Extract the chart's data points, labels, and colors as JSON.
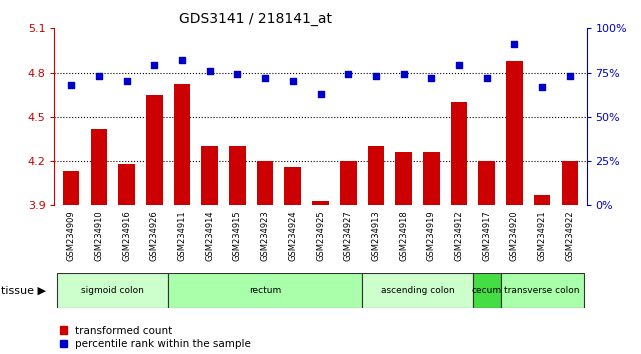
{
  "title": "GDS3141 / 218141_at",
  "samples": [
    "GSM234909",
    "GSM234910",
    "GSM234916",
    "GSM234926",
    "GSM234911",
    "GSM234914",
    "GSM234915",
    "GSM234923",
    "GSM234924",
    "GSM234925",
    "GSM234927",
    "GSM234913",
    "GSM234918",
    "GSM234919",
    "GSM234912",
    "GSM234917",
    "GSM234920",
    "GSM234921",
    "GSM234922"
  ],
  "bar_values": [
    4.13,
    4.42,
    4.18,
    4.65,
    4.72,
    4.3,
    4.3,
    4.2,
    4.16,
    3.93,
    4.2,
    4.3,
    4.26,
    4.26,
    4.6,
    4.2,
    4.88,
    3.97,
    4.2
  ],
  "dot_values": [
    68,
    73,
    70,
    79,
    82,
    76,
    74,
    72,
    70,
    63,
    74,
    73,
    74,
    72,
    79,
    72,
    91,
    67,
    73
  ],
  "ylim_left": [
    3.9,
    5.1
  ],
  "ylim_right": [
    0,
    100
  ],
  "yticks_left": [
    3.9,
    4.2,
    4.5,
    4.8,
    5.1
  ],
  "yticks_right": [
    0,
    25,
    50,
    75,
    100
  ],
  "hlines": [
    4.2,
    4.5,
    4.8
  ],
  "bar_color": "#cc0000",
  "dot_color": "#0000cc",
  "groups": [
    {
      "label": "sigmoid colon",
      "start": 0,
      "end": 3,
      "color": "#ccffcc"
    },
    {
      "label": "rectum",
      "start": 4,
      "end": 10,
      "color": "#aaffaa"
    },
    {
      "label": "ascending colon",
      "start": 11,
      "end": 14,
      "color": "#ccffcc"
    },
    {
      "label": "cecum",
      "start": 15,
      "end": 15,
      "color": "#44dd44"
    },
    {
      "label": "transverse colon",
      "start": 16,
      "end": 18,
      "color": "#aaffaa"
    }
  ],
  "tissue_label": "tissue",
  "legend_bar": "transformed count",
  "legend_dot": "percentile rank within the sample",
  "ticklabel_bg": "#cccccc",
  "plot_bg": "#ffffff",
  "right_axis_color": "#0000cc",
  "left_axis_color": "#cc0000",
  "tissue_bar_outline": "#333333"
}
